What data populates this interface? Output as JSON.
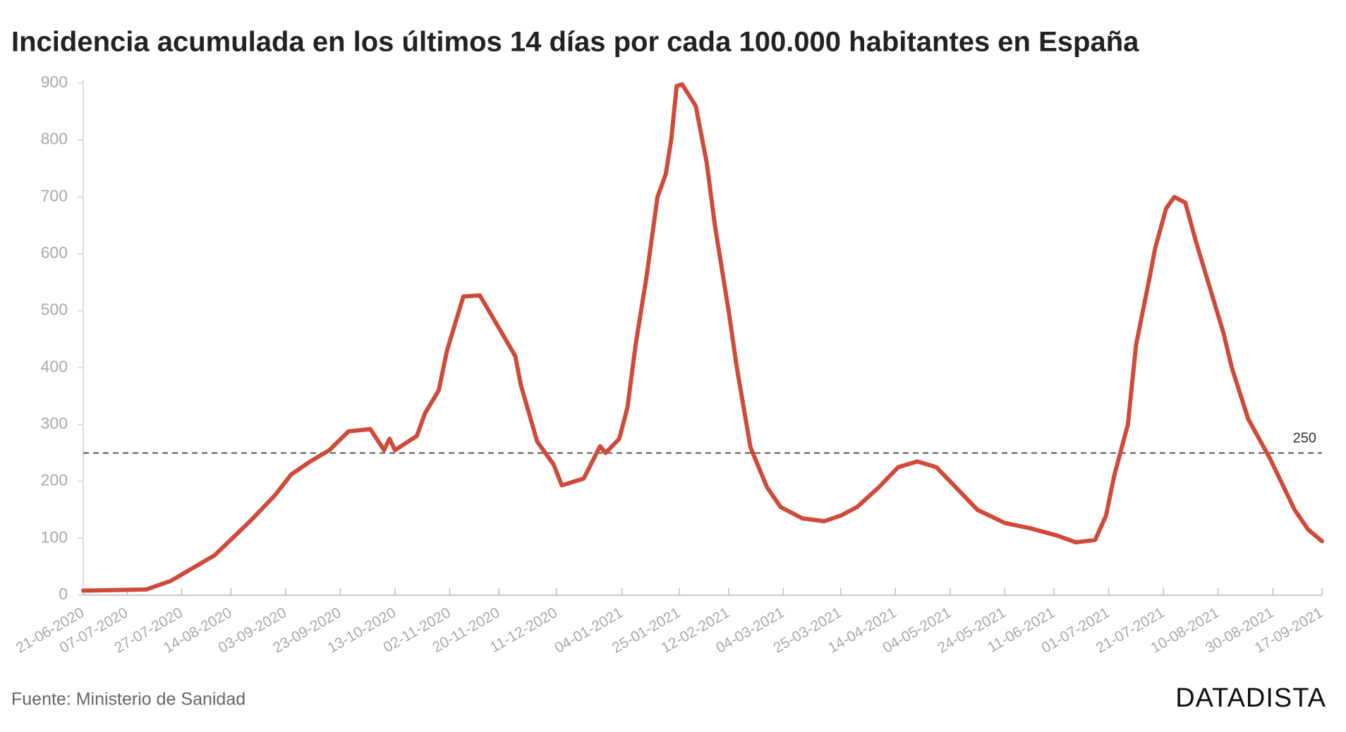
{
  "chart_data": {
    "type": "line",
    "title": "Incidencia acumulada en los últimos 14 días por cada 100.000 habitantes en España",
    "source": "Fuente: Ministerio de Sanidad",
    "brand": "DATADISTA",
    "ylim": [
      0,
      900
    ],
    "yticks": [
      0,
      100,
      200,
      300,
      400,
      500,
      600,
      700,
      800,
      900
    ],
    "xlim": [
      "21-06-2020",
      "17-09-2021"
    ],
    "xticks": [
      "21-06-2020",
      "07-07-2020",
      "27-07-2020",
      "14-08-2020",
      "03-09-2020",
      "23-09-2020",
      "13-10-2020",
      "02-11-2020",
      "20-11-2020",
      "11-12-2020",
      "04-01-2021",
      "25-01-2021",
      "12-02-2021",
      "04-03-2021",
      "25-03-2021",
      "14-04-2021",
      "04-05-2021",
      "24-05-2021",
      "11-06-2021",
      "01-07-2021",
      "21-07-2021",
      "10-08-2021",
      "30-08-2021",
      "17-09-2021"
    ],
    "reference_line": 250,
    "x": [
      "21-06-2020",
      "14-07-2020",
      "23-07-2020",
      "08-08-2020",
      "21-08-2020",
      "30-08-2020",
      "05-09-2020",
      "12-09-2020",
      "19-09-2020",
      "26-09-2020",
      "04-10-2020",
      "09-10-2020",
      "11-10-2020",
      "13-10-2020",
      "21-10-2020",
      "24-10-2020",
      "29-10-2020",
      "01-11-2020",
      "07-11-2020",
      "13-11-2020",
      "20-11-2020",
      "26-11-2020",
      "28-11-2020",
      "04-12-2020",
      "10-12-2020",
      "13-12-2020",
      "21-12-2020",
      "27-12-2020",
      "29-12-2020",
      "03-01-2021",
      "06-01-2021",
      "09-01-2021",
      "13-01-2021",
      "17-01-2021",
      "20-01-2021",
      "22-01-2021",
      "24-01-2021",
      "26-01-2021",
      "31-01-2021",
      "04-02-2021",
      "07-02-2021",
      "12-02-2021",
      "15-02-2021",
      "20-02-2021",
      "26-02-2021",
      "03-03-2021",
      "11-03-2021",
      "19-03-2021",
      "25-03-2021",
      "31-03-2021",
      "08-04-2021",
      "15-04-2021",
      "22-04-2021",
      "29-04-2021",
      "05-05-2021",
      "14-05-2021",
      "24-05-2021",
      "02-06-2021",
      "12-06-2021",
      "19-06-2021",
      "26-06-2021",
      "30-06-2021",
      "03-07-2021",
      "08-07-2021",
      "11-07-2021",
      "16-07-2021",
      "18-07-2021",
      "22-07-2021",
      "25-07-2021",
      "29-07-2021",
      "02-08-2021",
      "07-08-2021",
      "12-08-2021",
      "15-08-2021",
      "21-08-2021",
      "29-08-2021",
      "02-09-2021",
      "07-09-2021",
      "12-09-2021",
      "17-09-2021"
    ],
    "series": [
      {
        "name": "Incidencia acumulada",
        "color": "#d04a3a",
        "values": [
          8,
          10,
          25,
          70,
          130,
          175,
          212,
          235,
          255,
          288,
          292,
          255,
          275,
          255,
          280,
          320,
          360,
          430,
          525,
          527,
          470,
          420,
          370,
          270,
          230,
          193,
          205,
          262,
          250,
          275,
          330,
          440,
          560,
          700,
          740,
          800,
          895,
          898,
          860,
          760,
          650,
          500,
          400,
          260,
          190,
          155,
          135,
          130,
          140,
          155,
          190,
          225,
          235,
          225,
          195,
          150,
          127,
          118,
          105,
          93,
          97,
          140,
          210,
          300,
          440,
          560,
          610,
          680,
          700,
          690,
          620,
          540,
          460,
          400,
          310,
          240,
          200,
          150,
          115,
          95
        ]
      }
    ]
  }
}
